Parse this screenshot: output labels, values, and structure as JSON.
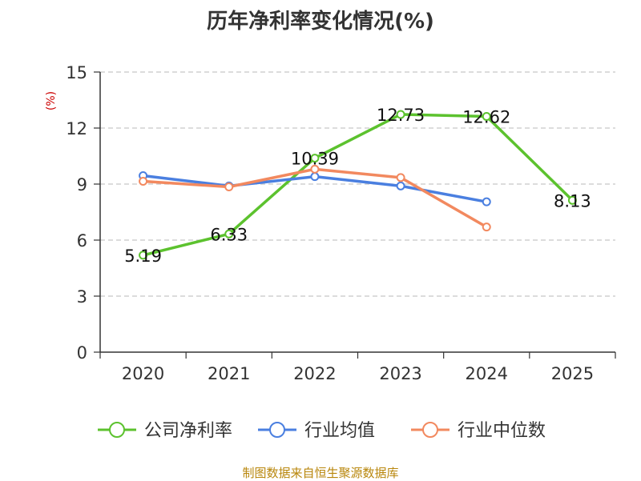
{
  "chart_data": {
    "type": "line",
    "title": "历年净利率变化情况(%)",
    "ylabel": "(%)",
    "xlabel": "",
    "categories": [
      "2020",
      "2021",
      "2022",
      "2023",
      "2024",
      "2025"
    ],
    "ylim": [
      0,
      15
    ],
    "yticks": [
      "0",
      "3",
      "6",
      "9",
      "12",
      "15"
    ],
    "grid": true,
    "legend_position": "bottom",
    "series": [
      {
        "name": "公司净利率",
        "color": "#5cc22e",
        "values": [
          5.19,
          6.33,
          10.39,
          12.73,
          12.62,
          8.13
        ],
        "labels": [
          "5.19",
          "6.33",
          "10.39",
          "12.73",
          "12.62",
          "8.13"
        ]
      },
      {
        "name": "行业均值",
        "color": "#4a7fe0",
        "values": [
          9.45,
          8.9,
          9.4,
          8.9,
          8.05,
          null
        ]
      },
      {
        "name": "行业中位数",
        "color": "#f2895f",
        "values": [
          9.15,
          8.85,
          9.8,
          9.35,
          6.7,
          null
        ]
      }
    ],
    "source": "制图数据来自恒生聚源数据库"
  }
}
